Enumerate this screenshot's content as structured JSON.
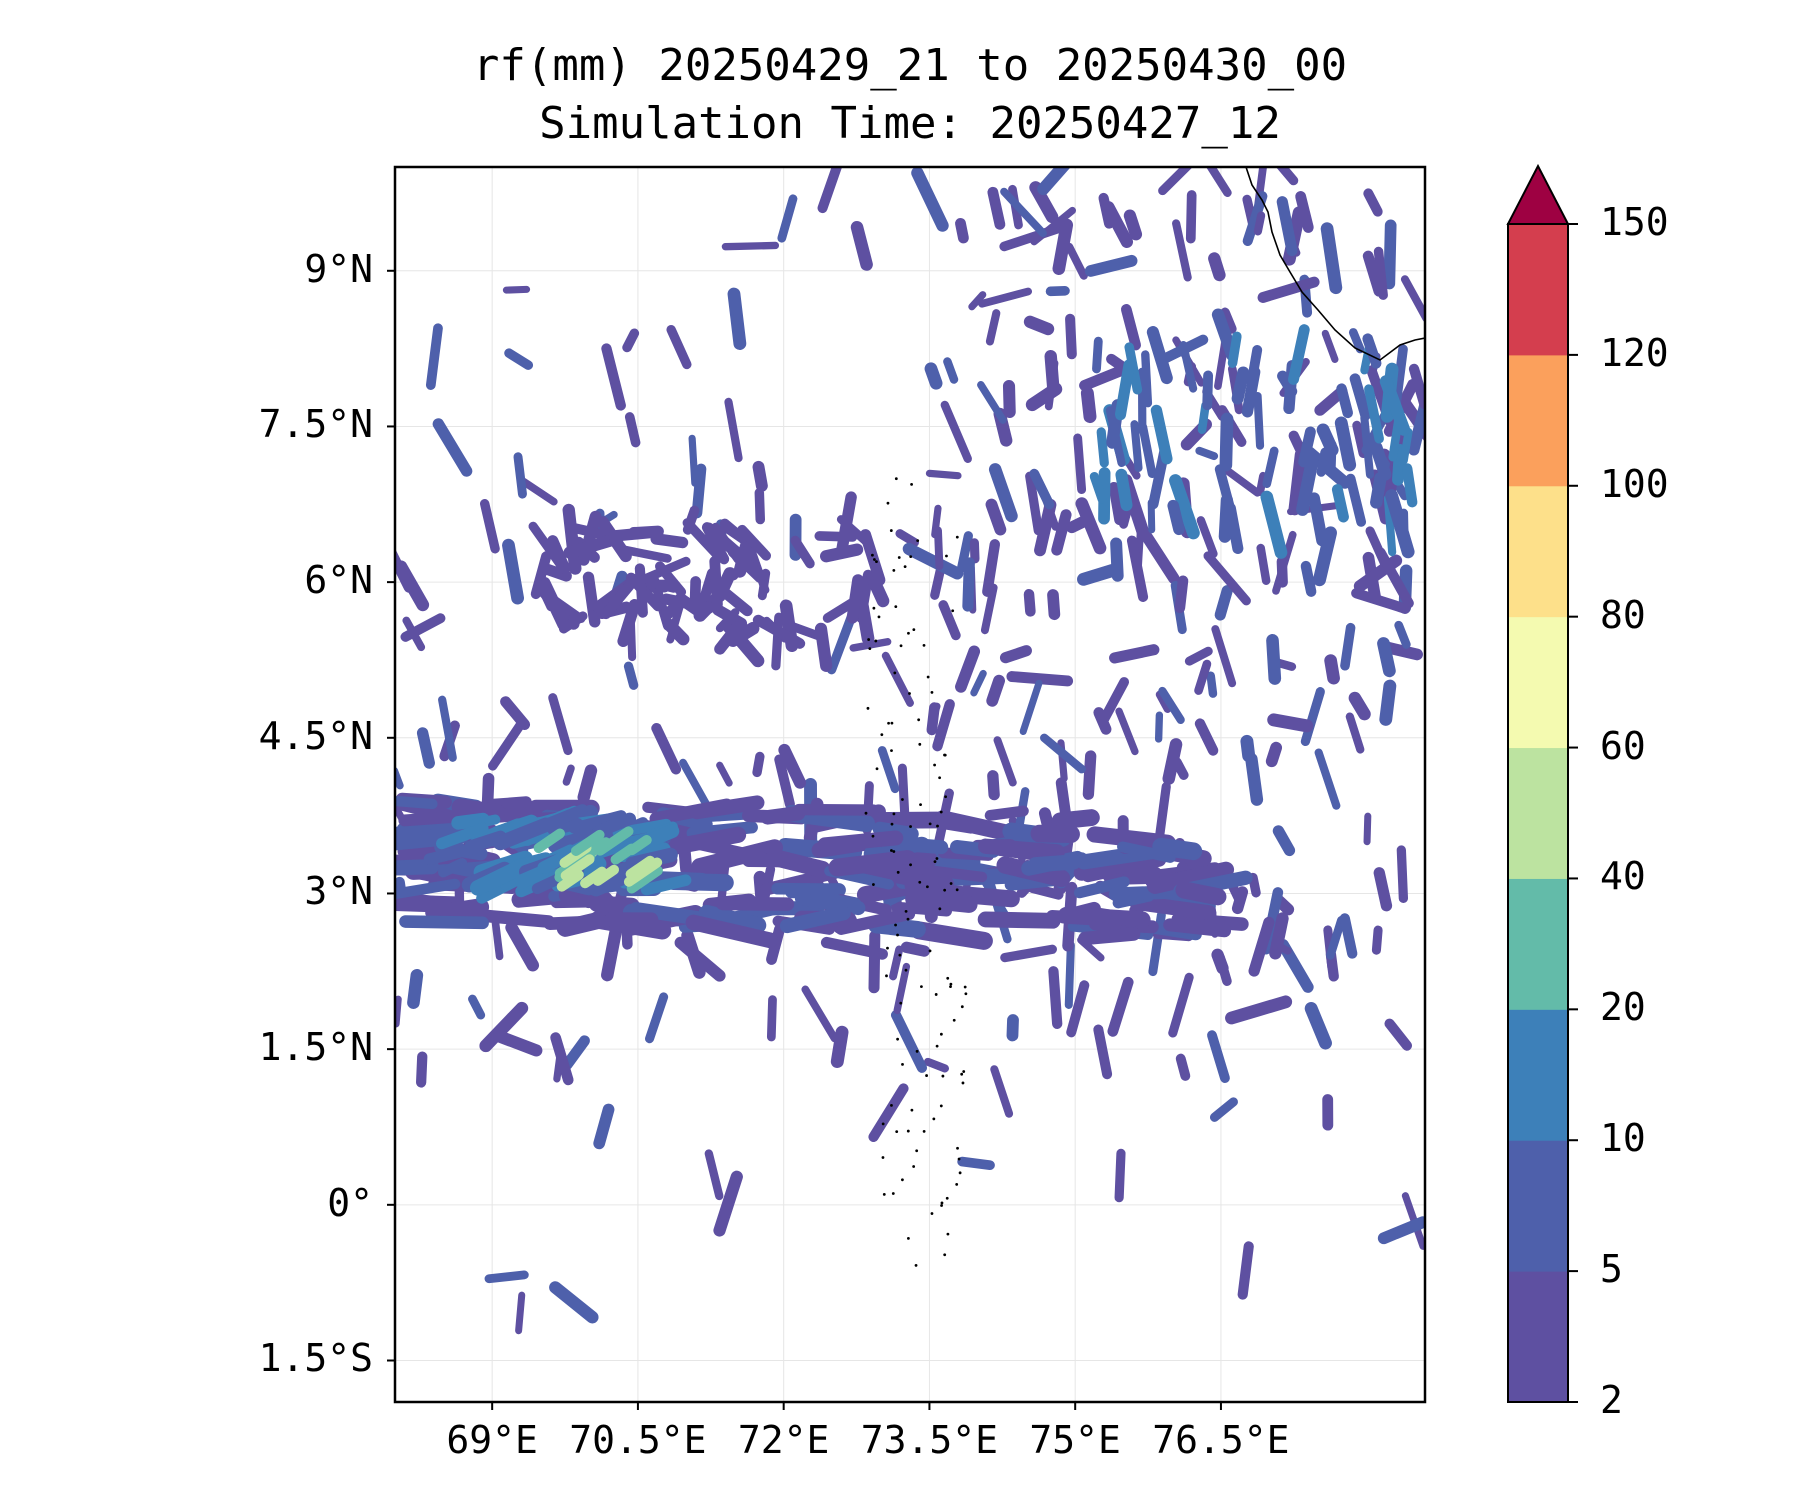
{
  "title": {
    "line1": "rf(mm) 20250429_21 to 20250430_00",
    "line2": "Simulation Time: 20250427_12"
  },
  "map": {
    "type": "filled-contour-map",
    "variable": "rf(mm)",
    "lon_range": [
      68.0,
      78.6
    ],
    "lat_range": [
      -1.9,
      10.0
    ],
    "grid": true,
    "coastline": true,
    "lat_ticks": [
      "9°N",
      "7.5°N",
      "6°N",
      "4.5°N",
      "3°N",
      "1.5°N",
      "0°",
      "1.5°S"
    ],
    "lat_values": [
      9,
      7.5,
      6,
      4.5,
      3,
      1.5,
      0,
      -1.5
    ],
    "lon_ticks": [
      "69°E",
      "70.5°E",
      "72°E",
      "73.5°E",
      "75°E",
      "76.5°E"
    ],
    "lon_values": [
      69,
      70.5,
      72,
      73.5,
      75,
      76.5
    ]
  },
  "colorbar": {
    "levels": [
      "2",
      "5",
      "10",
      "20",
      "40",
      "60",
      "80",
      "100",
      "120",
      "150"
    ],
    "level_values": [
      2,
      5,
      10,
      20,
      40,
      60,
      80,
      100,
      120,
      150
    ],
    "colors": [
      "#5e50a1",
      "#4e60ab",
      "#3d80b9",
      "#63bba9",
      "#bce3a0",
      "#f4fab0",
      "#fde08a",
      "#fba05c",
      "#d43e4e",
      "#9e0142"
    ],
    "extend": "max",
    "extend_color": "#9e0142"
  }
}
